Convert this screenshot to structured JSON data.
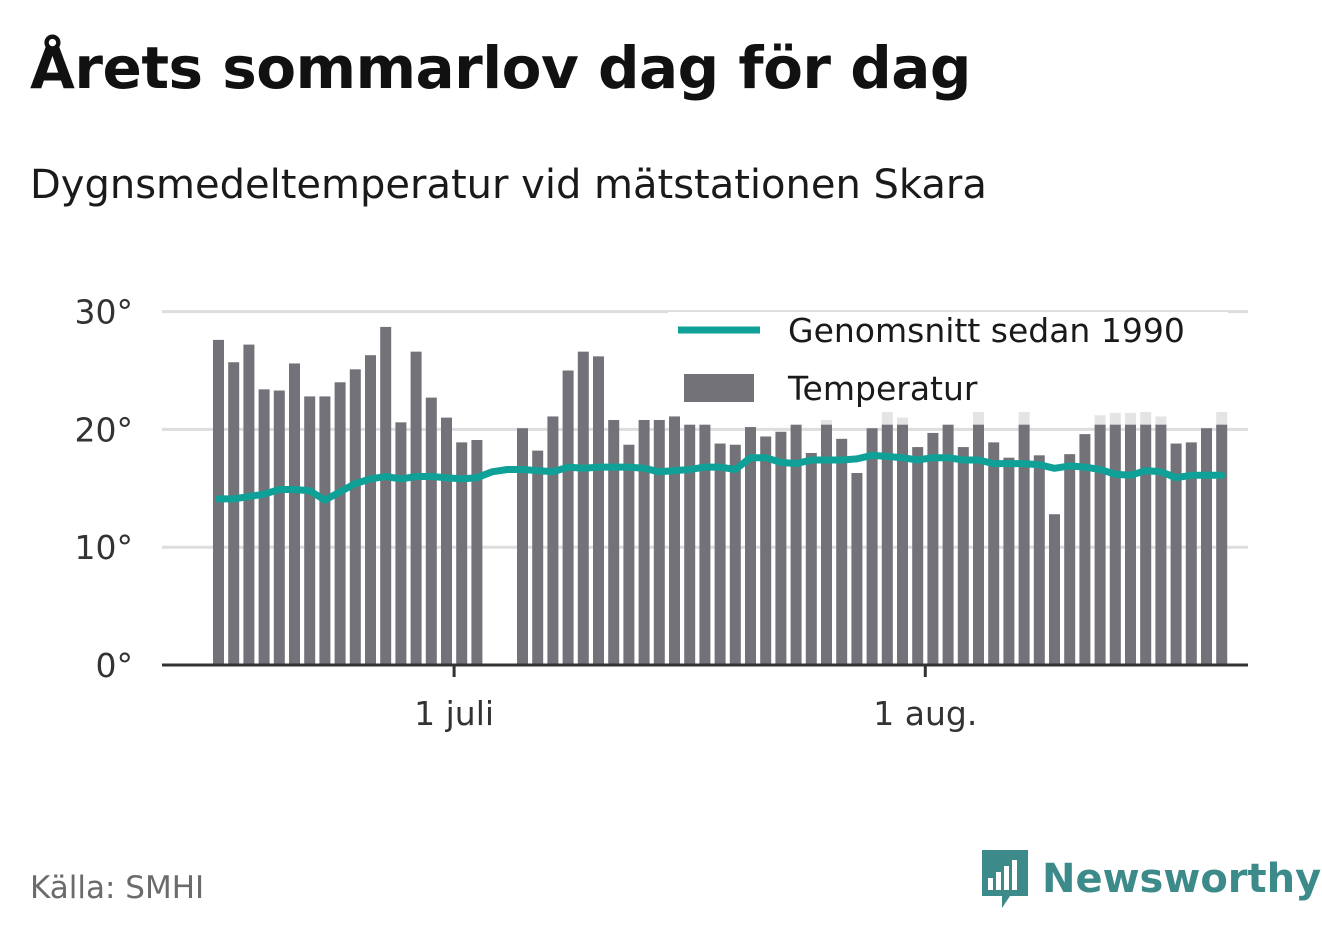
{
  "title": "Årets sommarlov dag för dag",
  "subtitle": "Dygnsmedeltemperatur vid mätstationen Skara",
  "source": "Källa: SMHI",
  "brand": {
    "name": "Newsworthy",
    "icon": "bar-chart-speech-bubble-icon"
  },
  "colors": {
    "bars": "#747279",
    "bars_faded": "#e4e4e4",
    "average_line": "#0fa198",
    "grid": "#dddddd",
    "axis": "#333333"
  },
  "chart_data": {
    "type": "bar",
    "yticks": [
      0,
      10,
      20,
      30
    ],
    "ytick_labels": [
      "0°",
      "10°",
      "20°",
      "30°"
    ],
    "ylim": [
      0,
      30
    ],
    "xtick_labels": [
      {
        "label": "1 juli",
        "day_index": 16
      },
      {
        "label": "1 aug.",
        "day_index": 47
      }
    ],
    "first_day": "15 juni",
    "grid": true,
    "legend_position": "top-right",
    "series": [
      {
        "name": "Temperatur",
        "type": "bar",
        "values": [
          27.6,
          25.7,
          27.2,
          23.4,
          23.3,
          25.6,
          22.8,
          22.8,
          24.0,
          25.1,
          26.3,
          28.7,
          20.6,
          26.6,
          22.7,
          21.0,
          18.9,
          19.1,
          null,
          null,
          20.1,
          18.2,
          21.1,
          25.0,
          26.6,
          26.2,
          20.8,
          18.7,
          20.8,
          20.8,
          21.1,
          20.4,
          20.4,
          18.8,
          18.7,
          20.2,
          19.4,
          19.8,
          20.4,
          18.0,
          20.4,
          19.2,
          16.3,
          20.1,
          20.4,
          20.4,
          18.5,
          19.7,
          20.4,
          18.5,
          20.4,
          18.9,
          17.6,
          20.4,
          17.8,
          12.8,
          17.9,
          19.6,
          20.4,
          20.4,
          20.4,
          20.4,
          20.4,
          18.8,
          18.9,
          20.1,
          20.4
        ]
      },
      {
        "name": "Temperatur",
        "type": "bar_faded",
        "values": [
          null,
          null,
          null,
          null,
          null,
          null,
          null,
          null,
          null,
          null,
          null,
          null,
          null,
          null,
          null,
          null,
          null,
          null,
          null,
          null,
          null,
          null,
          null,
          null,
          null,
          null,
          null,
          null,
          null,
          null,
          null,
          null,
          null,
          null,
          null,
          null,
          null,
          null,
          null,
          null,
          20.8,
          null,
          null,
          null,
          22.6,
          21.0,
          null,
          null,
          null,
          null,
          21.6,
          null,
          null,
          21.8,
          null,
          null,
          null,
          null,
          21.2,
          21.4,
          21.4,
          22.2,
          21.1,
          null,
          null,
          null,
          22.3
        ]
      },
      {
        "name": "Genomsnitt sedan 1990",
        "type": "line",
        "values": [
          14.1,
          14.1,
          14.3,
          14.5,
          14.9,
          14.9,
          14.8,
          14.0,
          14.7,
          15.4,
          15.8,
          16.0,
          15.8,
          16.0,
          16.0,
          15.9,
          15.8,
          15.9,
          16.4,
          16.6,
          16.6,
          16.5,
          16.4,
          16.8,
          16.7,
          16.8,
          16.8,
          16.8,
          16.7,
          16.4,
          16.5,
          16.6,
          16.8,
          16.8,
          16.6,
          17.6,
          17.6,
          17.2,
          17.1,
          17.4,
          17.4,
          17.4,
          17.5,
          17.8,
          17.7,
          17.6,
          17.4,
          17.6,
          17.6,
          17.4,
          17.4,
          17.1,
          17.1,
          17.1,
          17.0,
          16.7,
          16.9,
          16.8,
          16.6,
          16.2,
          16.1,
          16.5,
          16.4,
          15.9,
          16.1,
          16.1,
          16.1
        ]
      }
    ]
  }
}
